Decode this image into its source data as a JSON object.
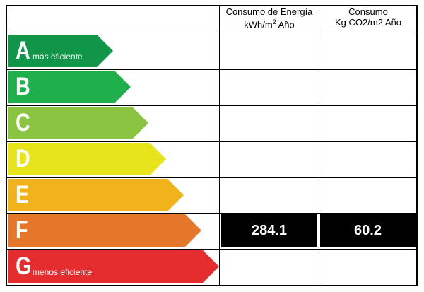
{
  "header": {
    "col1_line1": "Consumo de Energía",
    "col1_line2": "kWh/m",
    "col1_sup": "2",
    "col1_line2_end": " Año",
    "col2_line1": "Consumo",
    "col2_line2": "Kg CO2/m2 Año"
  },
  "ratings": [
    {
      "letter": "A",
      "label": "más eficiente",
      "color": "#119548"
    },
    {
      "letter": "B",
      "label": "",
      "color": "#1fb04b"
    },
    {
      "letter": "C",
      "label": "",
      "color": "#8bc440"
    },
    {
      "letter": "D",
      "label": "",
      "color": "#e8e41c"
    },
    {
      "letter": "E",
      "label": "",
      "color": "#f0b31c"
    },
    {
      "letter": "F",
      "label": "",
      "color": "#e5772a"
    },
    {
      "letter": "G",
      "label": "menos eficiente",
      "color": "#e52d2f"
    }
  ],
  "current": {
    "rating": "F",
    "energy": "284.1",
    "co2": "60.2",
    "highlight_color": "#000000"
  }
}
